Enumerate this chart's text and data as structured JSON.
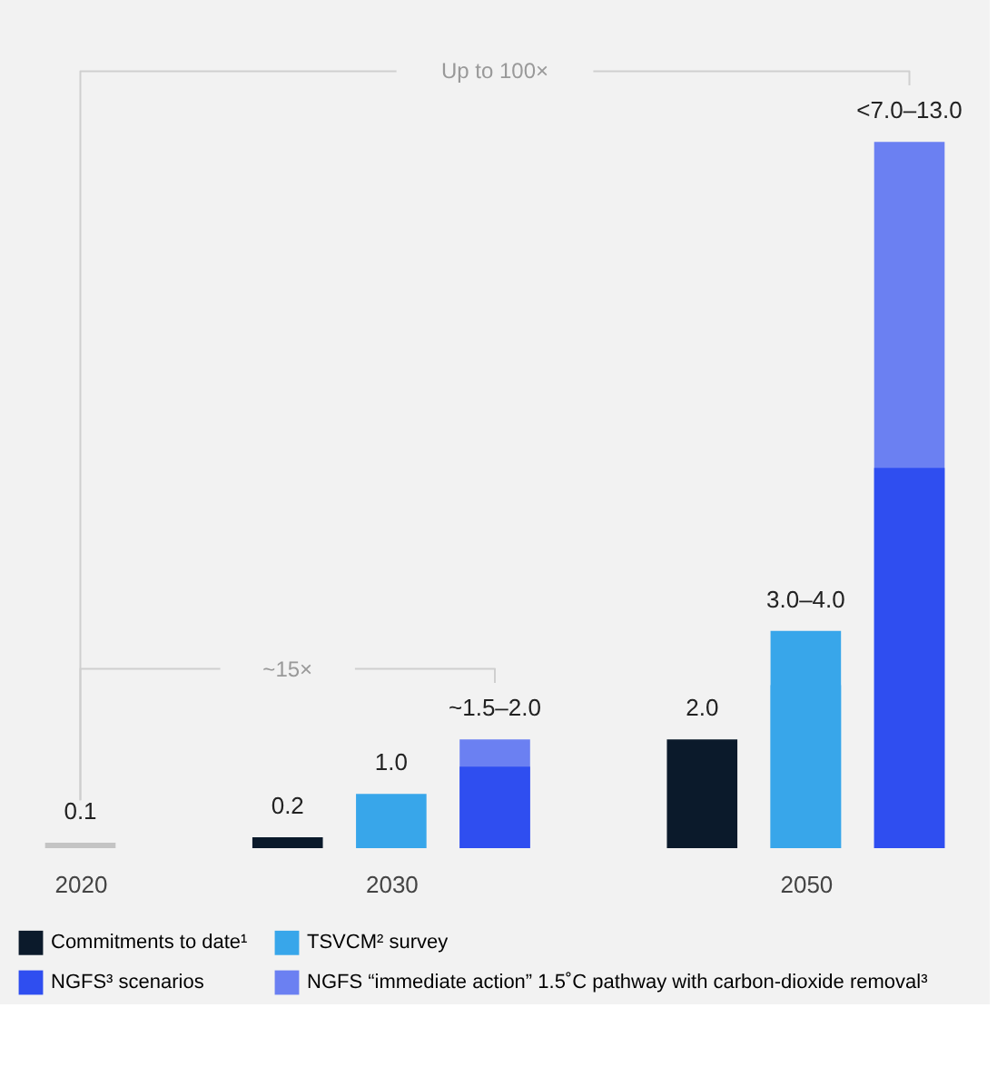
{
  "chart_data": {
    "type": "bar",
    "tick_labels": "x",
    "legend": "bottom",
    "categories": [
      "2020",
      null,
      null,
      "2030",
      null,
      null,
      null,
      "2050",
      null
    ],
    "series": [
      {
        "color": "#c4c4c4",
        "values": [
          0.1,
          null,
          null,
          null,
          null,
          null,
          null,
          null,
          null
        ],
        "value_labels": [
          "0.1",
          null,
          null,
          null,
          null,
          null,
          null,
          null,
          null
        ]
      },
      {
        "name": "Commitments to date¹",
        "color": "#0b1a2b",
        "values": [
          null,
          null,
          0.2,
          null,
          null,
          null,
          2.0,
          null,
          null
        ],
        "value_labels": [
          null,
          null,
          "0.2",
          null,
          null,
          null,
          "2.0",
          null,
          null
        ]
      },
      {
        "name": "TSVCM² survey",
        "color": "#38a6ea",
        "values": [
          null,
          null,
          null,
          1.0,
          null,
          null,
          null,
          3.0,
          null
        ],
        "value_labels": [
          null,
          null,
          null,
          "1.0",
          null,
          null,
          null,
          null,
          null
        ]
      },
      {
        "color": "#38a6ea",
        "values": [
          null,
          null,
          null,
          null,
          null,
          null,
          null,
          4.0,
          null
        ],
        "value_labels": [
          null,
          null,
          null,
          null,
          null,
          null,
          null,
          "3.0–4.0",
          null
        ]
      },
      {
        "name": "NGFS³ scenarios",
        "color": "#2f4ef0",
        "values": [
          null,
          null,
          null,
          null,
          1.5,
          null,
          null,
          null,
          7.0
        ]
      },
      {
        "name": "NGFS “immediate action” 1.5˚C pathway with carbon-dioxide removal³",
        "color": "#6b80f2",
        "values": [
          null,
          null,
          null,
          null,
          2.0,
          null,
          null,
          null,
          13.0
        ],
        "value_labels": [
          null,
          null,
          null,
          null,
          "~1.5–2.0",
          null,
          null,
          null,
          "<7.0–13.0"
        ]
      }
    ],
    "annotations": [
      "Up to 100×",
      "~15×"
    ]
  }
}
